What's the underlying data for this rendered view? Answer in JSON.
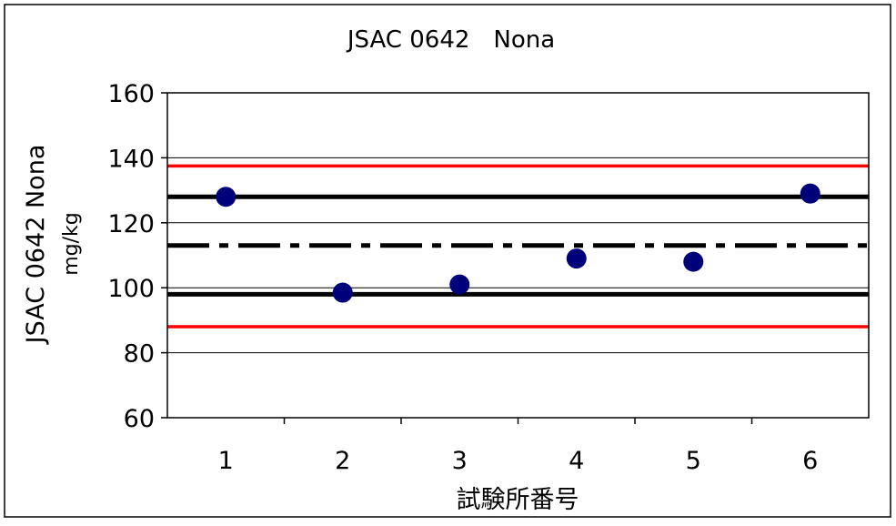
{
  "chart_data": {
    "type": "scatter",
    "title": "JSAC 0642　Nona",
    "xlabel": "試験所番号",
    "ylabel": "JSAC 0642 Nona",
    "ylabel_unit": "mg/kg",
    "categories": [
      "1",
      "2",
      "3",
      "4",
      "5",
      "6"
    ],
    "series": [
      {
        "values": [
          128,
          98.5,
          101,
          109,
          108,
          129
        ],
        "color": "#00007a"
      }
    ],
    "reference_lines": [
      {
        "value": 137.5,
        "style": "solid",
        "color": "#ff0000"
      },
      {
        "value": 128,
        "style": "solid",
        "color": "#000000"
      },
      {
        "value": 113,
        "style": "dash-dot",
        "color": "#000000"
      },
      {
        "value": 98,
        "style": "solid",
        "color": "#000000"
      },
      {
        "value": 88,
        "style": "solid",
        "color": "#ff0000"
      }
    ],
    "yticks": [
      60,
      80,
      100,
      120,
      140,
      160
    ],
    "ylim": [
      60,
      160
    ],
    "grid": true,
    "legend": "none"
  }
}
